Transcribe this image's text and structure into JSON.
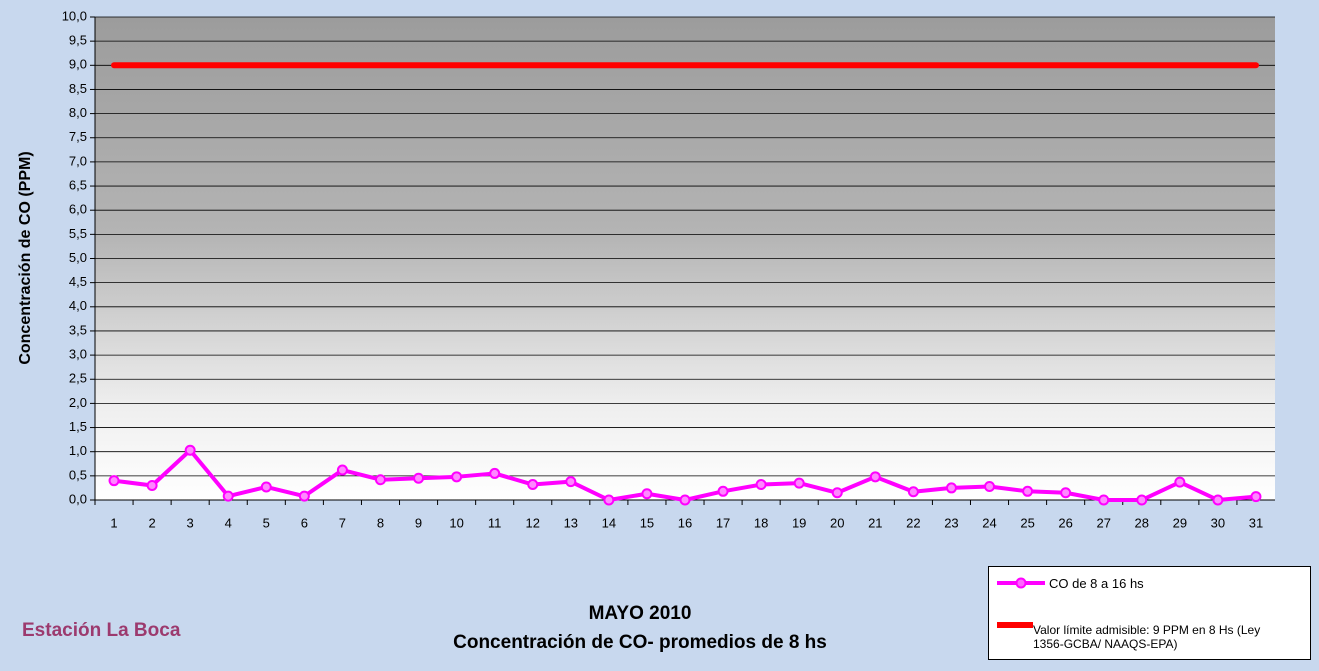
{
  "chart_data": {
    "type": "line",
    "title": "MAYO 2010",
    "subtitle": "Concentración de CO- promedios de 8 hs",
    "annotation": "Estación La Boca",
    "y_label": "Concentración de CO (PPM)",
    "categories": [
      "1",
      "2",
      "3",
      "4",
      "5",
      "6",
      "7",
      "8",
      "9",
      "10",
      "11",
      "12",
      "13",
      "14",
      "15",
      "16",
      "17",
      "18",
      "19",
      "20",
      "21",
      "22",
      "23",
      "24",
      "25",
      "26",
      "27",
      "28",
      "29",
      "30",
      "31"
    ],
    "series": [
      {
        "name": "CO de 8 a 16 hs",
        "color": "#ff00ff",
        "values": [
          0.4,
          0.3,
          1.03,
          0.08,
          0.27,
          0.08,
          0.62,
          0.42,
          0.45,
          0.48,
          0.55,
          0.32,
          0.38,
          0.0,
          0.13,
          0.0,
          0.18,
          0.32,
          0.35,
          0.15,
          0.48,
          0.17,
          0.25,
          0.28,
          0.18,
          0.15,
          0.0,
          0.0,
          0.37,
          0.0,
          0.07
        ]
      },
      {
        "name": "Valor límite admisible: 9 PPM en 8 Hs (Ley 1356-GCBA/ NAAQS-EPA)",
        "color": "#ff0000",
        "values": [
          9,
          9,
          9,
          9,
          9,
          9,
          9,
          9,
          9,
          9,
          9,
          9,
          9,
          9,
          9,
          9,
          9,
          9,
          9,
          9,
          9,
          9,
          9,
          9,
          9,
          9,
          9,
          9,
          9,
          9,
          9
        ]
      }
    ],
    "ylim": [
      0,
      10
    ],
    "yticks": [
      {
        "value": 0,
        "label": "0,0"
      },
      {
        "value": 0.5,
        "label": "0,5"
      },
      {
        "value": 1,
        "label": "1,0"
      },
      {
        "value": 1.5,
        "label": "1,5"
      },
      {
        "value": 2,
        "label": "2,0"
      },
      {
        "value": 2.5,
        "label": "2,5"
      },
      {
        "value": 3,
        "label": "3,0"
      },
      {
        "value": 3.5,
        "label": "3,5"
      },
      {
        "value": 4,
        "label": "4,0"
      },
      {
        "value": 4.5,
        "label": "4,5"
      },
      {
        "value": 5,
        "label": "5,0"
      },
      {
        "value": 5.5,
        "label": "5,5"
      },
      {
        "value": 6,
        "label": "6,0"
      },
      {
        "value": 6.5,
        "label": "6,5"
      },
      {
        "value": 7,
        "label": "7,0"
      },
      {
        "value": 7.5,
        "label": "7,5"
      },
      {
        "value": 8,
        "label": "8,0"
      },
      {
        "value": 8.5,
        "label": "8,5"
      },
      {
        "value": 9,
        "label": "9,0"
      },
      {
        "value": 9.5,
        "label": "9,5"
      },
      {
        "value": 10,
        "label": "10,0"
      }
    ],
    "grid": true
  }
}
